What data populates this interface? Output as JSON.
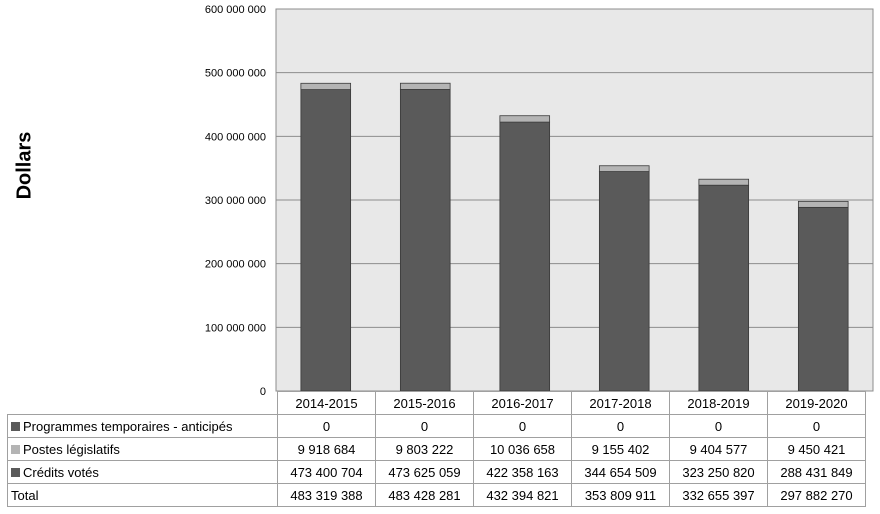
{
  "chart_data": {
    "type": "bar",
    "stacked": true,
    "ylabel": "Dollars",
    "ylim": [
      0,
      600000000
    ],
    "yticks": [
      "0",
      "100 000 000",
      "200 000 000",
      "300 000 000",
      "400 000 000",
      "500 000 000",
      "600 000 000"
    ],
    "ytick_values": [
      0,
      100000000,
      200000000,
      300000000,
      400000000,
      500000000,
      600000000
    ],
    "grid": true,
    "categories": [
      "2014-2015",
      "2015-2016",
      "2016-2017",
      "2017-2018",
      "2018-2019",
      "2019-2020"
    ],
    "series": [
      {
        "name": "Programmes temporaires - anticipés",
        "color": "#5a5a5a",
        "values": [
          0,
          0,
          0,
          0,
          0,
          0
        ],
        "labels": [
          "0",
          "0",
          "0",
          "0",
          "0",
          "0"
        ]
      },
      {
        "name": "Postes législatifs",
        "color": "#b4b4b4",
        "values": [
          9918684,
          9803222,
          10036658,
          9155402,
          9404577,
          9450421
        ],
        "labels": [
          "9 918 684",
          "9 803 222",
          "10 036 658",
          "9 155 402",
          "9 404 577",
          "9 450 421"
        ]
      },
      {
        "name": "Crédits votés",
        "color": "#5a5a5a",
        "values": [
          473400704,
          473625059,
          422358163,
          344654509,
          323250820,
          288431849
        ],
        "labels": [
          "473 400 704",
          "473 625 059",
          "422 358 163",
          "344 654 509",
          "323 250 820",
          "288 431 849"
        ]
      }
    ],
    "total": {
      "name": "Total",
      "values": [
        483319388,
        483428281,
        432394821,
        353809911,
        332655397,
        297882270
      ],
      "labels": [
        "483 319 388",
        "483 428 281",
        "432 394 821",
        "353 809 911",
        "332 655 397",
        "297 882 270"
      ]
    }
  }
}
